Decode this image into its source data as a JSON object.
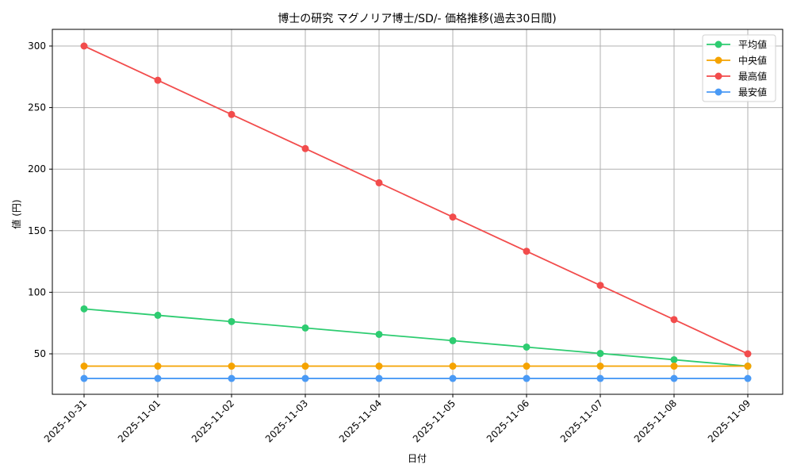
{
  "chart_data": {
    "type": "line",
    "title": "博士の研究 マグノリア博士/SD/- 価格推移(過去30日間)",
    "xlabel": "日付",
    "ylabel": "値 (円)",
    "categories": [
      "2025-10-31",
      "2025-11-01",
      "2025-11-02",
      "2025-11-03",
      "2025-11-04",
      "2025-11-05",
      "2025-11-06",
      "2025-11-07",
      "2025-11-08",
      "2025-11-09"
    ],
    "yticks": [
      50,
      100,
      150,
      200,
      250,
      300
    ],
    "ylim": [
      15,
      313
    ],
    "grid": true,
    "legend_position": "upper right",
    "series": [
      {
        "name": "平均値",
        "color": "#2ecc71",
        "values": [
          86.5,
          81.3,
          76.2,
          71.0,
          65.8,
          60.7,
          55.5,
          50.3,
          45.2,
          40.0
        ]
      },
      {
        "name": "中央値",
        "color": "#f5a300",
        "values": [
          40,
          40,
          40,
          40,
          40,
          40,
          40,
          40,
          40,
          40
        ]
      },
      {
        "name": "最高値",
        "color": "#f24c4c",
        "values": [
          300.0,
          272.2,
          244.4,
          216.7,
          188.9,
          161.1,
          133.3,
          105.6,
          77.8,
          50.0
        ]
      },
      {
        "name": "最安値",
        "color": "#4a9af5",
        "values": [
          30,
          30,
          30,
          30,
          30,
          30,
          30,
          30,
          30,
          30
        ]
      }
    ]
  }
}
